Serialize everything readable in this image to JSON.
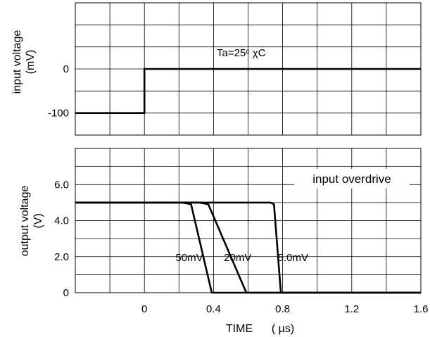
{
  "chart_data": [
    {
      "type": "line",
      "panel": "top",
      "ylabel_line1": "input voltage",
      "ylabel_line2": "(mV)",
      "annotation": "Ta=25ᶜ χC",
      "x_range": [
        -0.4,
        1.6
      ],
      "y_range": [
        -150,
        150
      ],
      "y_ticks": [
        {
          "value": 0,
          "label": "0"
        },
        {
          "value": -100,
          "label": "-100"
        }
      ],
      "grid": true,
      "series": [
        {
          "points": [
            [
              -0.4,
              -100
            ],
            [
              0,
              -100
            ],
            [
              0,
              0
            ],
            [
              1.6,
              0
            ]
          ]
        }
      ]
    },
    {
      "type": "line",
      "panel": "bottom",
      "ylabel_line1": "output voltage",
      "ylabel_line2": "(V)",
      "xlabel": "TIME",
      "xlabel_unit": "( µs)",
      "legend_title": "input overdrive",
      "x_range": [
        -0.4,
        1.6
      ],
      "y_range": [
        0,
        8
      ],
      "x_ticks": [
        {
          "value": 0,
          "label": "0"
        },
        {
          "value": 0.4,
          "label": "0.4"
        },
        {
          "value": 0.8,
          "label": "0.8"
        },
        {
          "value": 1.2,
          "label": "1.2"
        },
        {
          "value": 1.6,
          "label": "1.6"
        }
      ],
      "y_ticks": [
        {
          "value": 0,
          "label": "0"
        },
        {
          "value": 2,
          "label": "2.0"
        },
        {
          "value": 4,
          "label": "4.0"
        },
        {
          "value": 6,
          "label": "6.0"
        }
      ],
      "grid": true,
      "series": [
        {
          "label": "50mV",
          "points": [
            [
              -0.4,
              5
            ],
            [
              0.22,
              5
            ],
            [
              0.27,
              4.9
            ],
            [
              0.39,
              0
            ],
            [
              1.6,
              0
            ]
          ]
        },
        {
          "label": "20mV",
          "points": [
            [
              -0.4,
              5
            ],
            [
              0.32,
              5
            ],
            [
              0.37,
              4.9
            ],
            [
              0.59,
              0
            ],
            [
              1.6,
              0
            ]
          ]
        },
        {
          "label": "5.0mV",
          "points": [
            [
              -0.4,
              5
            ],
            [
              0.73,
              5
            ],
            [
              0.75,
              4.9
            ],
            [
              0.79,
              0
            ],
            [
              1.6,
              0
            ]
          ]
        }
      ]
    }
  ]
}
